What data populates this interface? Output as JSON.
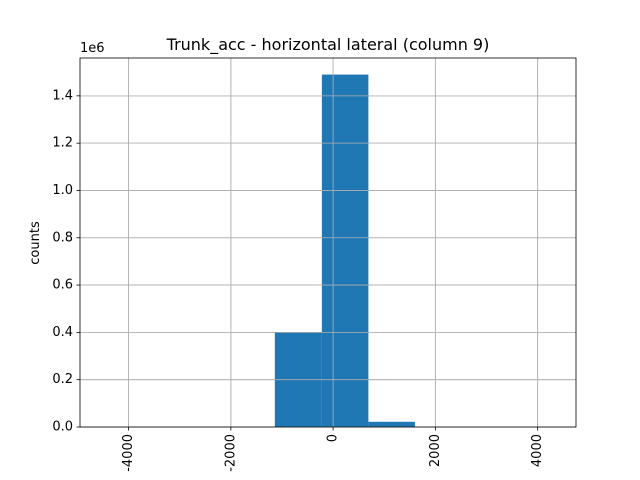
{
  "chart_data": {
    "type": "bar",
    "title": "Trunk_acc - horizontal lateral (column 9)",
    "xlabel": "",
    "ylabel": "counts",
    "y_offset_text": "1e6",
    "grid": true,
    "xlim": [
      -4950,
      4750
    ],
    "ylim": [
      0,
      1560000
    ],
    "x_ticks": [
      -4000,
      -2000,
      0,
      2000,
      4000
    ],
    "x_tick_labels": [
      "-4000",
      "-2000",
      "0",
      "2000",
      "4000"
    ],
    "x_tick_rotation": 90,
    "y_ticks": [
      0,
      200000,
      400000,
      600000,
      800000,
      1000000,
      1200000,
      1400000
    ],
    "y_tick_labels": [
      "0.0",
      "0.2",
      "0.4",
      "0.6",
      "0.8",
      "1.0",
      "1.2",
      "1.4"
    ],
    "bar_color": "#1f77b4",
    "bins": [
      {
        "x0": -4500,
        "x1": -3600,
        "count": 0
      },
      {
        "x0": -3600,
        "x1": -2700,
        "count": 0
      },
      {
        "x0": -2700,
        "x1": -1800,
        "count": 0
      },
      {
        "x0": -1800,
        "x1": -1140,
        "count": 0
      },
      {
        "x0": -1140,
        "x1": -220,
        "count": 400000
      },
      {
        "x0": -220,
        "x1": 690,
        "count": 1490000
      },
      {
        "x0": 690,
        "x1": 1600,
        "count": 22000
      },
      {
        "x0": 1600,
        "x1": 2500,
        "count": 0
      },
      {
        "x0": 2500,
        "x1": 3400,
        "count": 0
      },
      {
        "x0": 3400,
        "x1": 4300,
        "count": 0
      }
    ]
  }
}
